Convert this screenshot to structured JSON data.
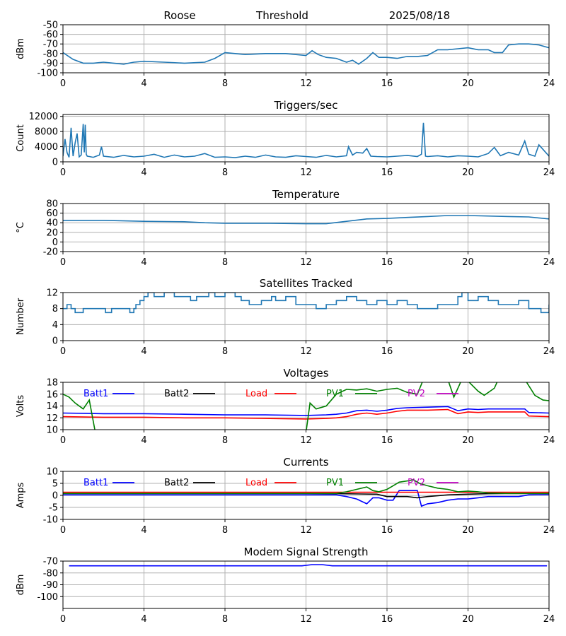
{
  "header": {
    "station": "Roose",
    "mode": "Threshold",
    "date": "2025/08/18"
  },
  "chart_data": [
    {
      "id": "signal",
      "type": "line",
      "title": "",
      "ylabel": "dBm",
      "xlim": [
        0,
        24
      ],
      "ylim": [
        -100,
        -50
      ],
      "xticks": [
        0,
        4,
        8,
        12,
        16,
        20,
        24
      ],
      "yticks": [
        -100,
        -90,
        -80,
        -70,
        -60,
        -50
      ],
      "grid": true,
      "series": [
        {
          "color": "#1f77b4",
          "x": [
            0,
            0.5,
            1,
            1.5,
            2,
            2.5,
            3,
            3.5,
            4,
            5,
            6,
            7,
            7.5,
            8,
            8.5,
            9,
            10,
            11,
            11.5,
            12,
            12.3,
            12.6,
            13,
            13.5,
            14,
            14.3,
            14.6,
            15,
            15.3,
            15.6,
            16,
            16.5,
            17,
            17.5,
            18,
            18.5,
            19,
            19.5,
            20,
            20.5,
            21,
            21.3,
            21.7,
            22,
            22.5,
            23,
            23.5,
            24
          ],
          "y": [
            -79,
            -86,
            -90,
            -90,
            -89,
            -90,
            -91,
            -89,
            -88,
            -89,
            -90,
            -89,
            -85,
            -79,
            -80,
            -81,
            -80,
            -80,
            -81,
            -82,
            -77,
            -81,
            -84,
            -85,
            -89,
            -87,
            -91,
            -85,
            -79,
            -84,
            -84,
            -85,
            -83,
            -83,
            -82,
            -76,
            -76,
            -75,
            -74,
            -76,
            -76,
            -79,
            -79,
            -71,
            -70,
            -70,
            -71,
            -74
          ]
        }
      ]
    },
    {
      "id": "triggers",
      "type": "line",
      "title": "Triggers/sec",
      "ylabel": "Count",
      "xlim": [
        0,
        24
      ],
      "ylim": [
        0,
        12500
      ],
      "xticks": [
        0,
        4,
        8,
        12,
        16,
        20,
        24
      ],
      "yticks": [
        0,
        4000,
        8000,
        12000
      ],
      "ytick_labels": [
        "0",
        "4000",
        "8000",
        "12000"
      ],
      "grid": true,
      "series": [
        {
          "color": "#1f77b4",
          "x": [
            0,
            0.1,
            0.2,
            0.3,
            0.4,
            0.5,
            0.6,
            0.7,
            0.8,
            0.9,
            1.0,
            1.05,
            1.1,
            1.15,
            1.2,
            1.3,
            1.5,
            1.8,
            1.9,
            2.0,
            2.5,
            3.0,
            3.5,
            4.0,
            4.5,
            5.0,
            5.5,
            6.0,
            6.5,
            7.0,
            7.5,
            8.0,
            8.5,
            9.0,
            9.5,
            10.0,
            10.5,
            11.0,
            11.5,
            12.0,
            12.5,
            13.0,
            13.5,
            14.0,
            14.1,
            14.3,
            14.5,
            14.8,
            15.0,
            15.2,
            15.5,
            16.0,
            16.5,
            17.0,
            17.5,
            17.7,
            17.8,
            17.9,
            18.0,
            18.5,
            19.0,
            19.5,
            20.0,
            20.5,
            21.0,
            21.3,
            21.6,
            22.0,
            22.5,
            22.8,
            23.0,
            23.3,
            23.5,
            24.0
          ],
          "y": [
            1500,
            6000,
            2500,
            1200,
            9000,
            1500,
            5000,
            7500,
            1300,
            1800,
            10000,
            2500,
            9800,
            2000,
            1500,
            1400,
            1200,
            1800,
            4000,
            1500,
            1200,
            1700,
            1300,
            1500,
            2000,
            1200,
            1800,
            1300,
            1500,
            2200,
            1200,
            1300,
            1100,
            1500,
            1200,
            1800,
            1300,
            1200,
            1600,
            1400,
            1200,
            1700,
            1300,
            1600,
            4000,
            1800,
            2500,
            2300,
            3500,
            1500,
            1400,
            1300,
            1500,
            1700,
            1400,
            2000,
            10300,
            1500,
            1400,
            1600,
            1300,
            1600,
            1500,
            1300,
            2200,
            3800,
            1600,
            2500,
            1800,
            5500,
            2000,
            1500,
            4500,
            1500
          ]
        }
      ]
    },
    {
      "id": "temperature",
      "type": "line",
      "title": "Temperature",
      "ylabel": "°C",
      "xlim": [
        0,
        24
      ],
      "ylim": [
        -20,
        80
      ],
      "xticks": [
        0,
        4,
        8,
        12,
        16,
        20,
        24
      ],
      "yticks": [
        -20,
        0,
        20,
        40,
        60,
        80
      ],
      "grid": true,
      "series": [
        {
          "color": "#1f77b4",
          "x": [
            0,
            2,
            4,
            6,
            7,
            8,
            10,
            12,
            13,
            14,
            15,
            16,
            17,
            18,
            19,
            20,
            21,
            22,
            23,
            24
          ],
          "y": [
            45,
            45,
            43,
            42,
            40,
            39,
            39,
            38,
            38,
            43,
            48,
            49,
            51,
            53,
            55,
            55,
            54,
            53,
            52,
            48
          ]
        }
      ]
    },
    {
      "id": "satellites",
      "type": "line",
      "title": "Satellites Tracked",
      "ylabel": "Number",
      "xlim": [
        0,
        24
      ],
      "ylim": [
        0,
        12
      ],
      "xticks": [
        0,
        4,
        8,
        12,
        16,
        20,
        24
      ],
      "yticks": [
        0,
        4,
        8,
        12
      ],
      "grid": true,
      "step": true,
      "series": [
        {
          "color": "#1f77b4",
          "x": [
            0,
            0.2,
            0.4,
            0.6,
            1.0,
            2.0,
            2.1,
            2.4,
            2.6,
            3.3,
            3.5,
            3.6,
            3.8,
            4.0,
            4.2,
            4.5,
            5.0,
            5.5,
            6.0,
            6.3,
            6.6,
            7.2,
            7.5,
            8.0,
            8.5,
            8.8,
            9.2,
            9.8,
            10.3,
            10.5,
            11.0,
            11.5,
            12.0,
            12.5,
            13.0,
            13.5,
            14.0,
            14.5,
            15.0,
            15.5,
            16.0,
            16.5,
            17.0,
            17.5,
            18.0,
            18.5,
            19.0,
            19.5,
            19.7,
            20.0,
            20.5,
            21.0,
            21.5,
            22.0,
            22.5,
            23.0,
            23.3,
            23.6,
            24.0
          ],
          "y": [
            8,
            9,
            8,
            7,
            8,
            8,
            7,
            8,
            8,
            7,
            8,
            9,
            10,
            11,
            12,
            11,
            12,
            11,
            11,
            10,
            11,
            12,
            11,
            12,
            11,
            10,
            9,
            10,
            11,
            10,
            11,
            9,
            9,
            8,
            9,
            10,
            11,
            10,
            9,
            10,
            9,
            10,
            9,
            8,
            8,
            9,
            9,
            11,
            12,
            10,
            11,
            10,
            9,
            9,
            10,
            8,
            8,
            7,
            9
          ]
        }
      ]
    },
    {
      "id": "voltages",
      "type": "line",
      "title": "Voltages",
      "ylabel": "Volts",
      "xlim": [
        0,
        24
      ],
      "ylim": [
        10,
        18
      ],
      "xticks": [
        0,
        4,
        8,
        12,
        16,
        20,
        24
      ],
      "yticks": [
        10,
        12,
        14,
        16,
        18
      ],
      "grid": true,
      "legend": [
        "Batt1",
        "Batt2",
        "Load",
        "PV1",
        "PV2"
      ],
      "series": [
        {
          "name": "Batt1",
          "color": "#0000ff",
          "x": [
            0,
            2,
            4,
            6,
            8,
            10,
            12,
            13,
            13.5,
            14,
            14.5,
            15,
            15.5,
            16,
            16.5,
            17,
            18,
            19,
            19.5,
            20,
            20.5,
            21,
            22,
            22.8,
            23,
            24
          ],
          "y": [
            12.8,
            12.7,
            12.7,
            12.6,
            12.5,
            12.5,
            12.4,
            12.5,
            12.6,
            12.8,
            13.2,
            13.3,
            13.1,
            13.3,
            13.6,
            13.7,
            13.8,
            13.9,
            13.2,
            13.5,
            13.4,
            13.5,
            13.5,
            13.5,
            12.9,
            12.8
          ]
        },
        {
          "name": "Batt2",
          "color": "#000000",
          "x": [],
          "y": []
        },
        {
          "name": "Load",
          "color": "#ff0000",
          "x": [
            0,
            2,
            4,
            6,
            8,
            10,
            12,
            13,
            13.5,
            14,
            14.5,
            15,
            15.5,
            16,
            16.5,
            17,
            18,
            19,
            19.5,
            20,
            20.5,
            21,
            22,
            22.8,
            23,
            24
          ],
          "y": [
            12.2,
            12.1,
            12.1,
            12.0,
            12.0,
            11.9,
            11.8,
            11.9,
            12.0,
            12.2,
            12.6,
            12.8,
            12.6,
            12.8,
            13.1,
            13.3,
            13.3,
            13.4,
            12.7,
            13.0,
            12.9,
            13.0,
            13.0,
            13.0,
            12.3,
            12.2
          ]
        },
        {
          "name": "PV1",
          "color": "#008000",
          "segments": [
            {
              "x": [
                0,
                0.3,
                0.6,
                1.0,
                1.3,
                1.6
              ],
              "y": [
                16.0,
                15.5,
                14.5,
                13.5,
                15.0,
                9.5
              ]
            },
            {
              "x": [
                12.0,
                12.2,
                12.5,
                13.0,
                13.5,
                14.0,
                14.5,
                15.0,
                15.5,
                16.0,
                16.5,
                17.0,
                17.5,
                17.8
              ],
              "y": [
                9.5,
                14.5,
                13.5,
                14.0,
                16.0,
                16.8,
                16.7,
                16.9,
                16.5,
                16.8,
                17.0,
                16.3,
                16.0,
                18.5
              ]
            },
            {
              "x": [
                19.0,
                19.3,
                19.7,
                20.0,
                20.5,
                20.8,
                21.3,
                21.5
              ],
              "y": [
                18.5,
                15.5,
                18.5,
                18.2,
                16.5,
                15.8,
                17.0,
                18.5
              ]
            },
            {
              "x": [
                22.8,
                23.3,
                23.7,
                24.0
              ],
              "y": [
                18.5,
                15.8,
                15.0,
                14.9
              ]
            }
          ]
        },
        {
          "name": "PV2",
          "color": "#bf00bf",
          "x": [],
          "y": []
        }
      ]
    },
    {
      "id": "currents",
      "type": "line",
      "title": "Currents",
      "ylabel": "Amps",
      "xlim": [
        0,
        24
      ],
      "ylim": [
        -10,
        10
      ],
      "xticks": [
        0,
        4,
        8,
        12,
        16,
        20,
        24
      ],
      "yticks": [
        -10,
        -5,
        0,
        5,
        10
      ],
      "grid": true,
      "legend": [
        "Batt1",
        "Batt2",
        "Load",
        "PV1",
        "PV2"
      ],
      "series": [
        {
          "name": "Batt1",
          "color": "#0000ff",
          "x": [
            0,
            2,
            4,
            6,
            8,
            10,
            12,
            13.5,
            14,
            14.5,
            15,
            15.3,
            15.6,
            16,
            16.3,
            16.6,
            17.5,
            17.7,
            18,
            18.5,
            19,
            19.5,
            20,
            20.5,
            21,
            21.5,
            22,
            22.5,
            23,
            24
          ],
          "y": [
            0.2,
            0.2,
            0.2,
            0.2,
            0.2,
            0.2,
            0.2,
            0.2,
            -0.5,
            -1.5,
            -3.5,
            -1.0,
            -1.0,
            -2.0,
            -2.0,
            2.0,
            2.0,
            -4.5,
            -3.5,
            -3.0,
            -2.0,
            -1.5,
            -1.5,
            -1.0,
            -0.5,
            -0.5,
            -0.5,
            -0.5,
            0.2,
            0.3
          ]
        },
        {
          "name": "Batt2",
          "color": "#000000",
          "x": [
            0,
            4,
            8,
            12,
            13.5,
            15.5,
            16,
            17,
            17.5,
            18,
            19,
            20,
            21,
            22,
            23,
            24
          ],
          "y": [
            0.8,
            0.8,
            0.8,
            0.8,
            0.7,
            0.5,
            -0.5,
            -0.5,
            -1.0,
            -0.5,
            0.2,
            0.5,
            0.7,
            0.8,
            0.8,
            0.8
          ]
        },
        {
          "name": "Load",
          "color": "#ff0000",
          "x": [
            0,
            4,
            8,
            12,
            16,
            20,
            24
          ],
          "y": [
            1.3,
            1.3,
            1.3,
            1.3,
            1.3,
            1.3,
            1.3
          ]
        },
        {
          "name": "PV1",
          "color": "#008000",
          "x": [
            0,
            4,
            8,
            12,
            13.5,
            14,
            14.5,
            15,
            15.3,
            15.6,
            16,
            16.3,
            16.6,
            17,
            17.3,
            17.6,
            18,
            18.5,
            19,
            19.5,
            20,
            20.5,
            21,
            22,
            23,
            24
          ],
          "y": [
            0.8,
            0.8,
            0.8,
            0.8,
            0.8,
            1.5,
            2.5,
            3.5,
            2.0,
            1.5,
            2.5,
            4.0,
            5.5,
            6.0,
            6.5,
            5.0,
            4.0,
            3.0,
            2.5,
            1.5,
            1.8,
            1.5,
            1.0,
            0.8,
            0.8,
            0.8
          ]
        },
        {
          "name": "PV2",
          "color": "#bf00bf",
          "x": [],
          "y": []
        }
      ]
    },
    {
      "id": "modem",
      "type": "line",
      "title": "Modem Signal Strength",
      "ylabel": "dBm",
      "xlim": [
        0,
        24
      ],
      "ylim": [
        -110,
        -70
      ],
      "xticks": [
        0,
        4,
        8,
        12,
        16,
        20,
        24
      ],
      "yticks": [
        -100,
        -90,
        -80,
        -70
      ],
      "grid": true,
      "series": [
        {
          "color": "#0000ff",
          "x": [
            0.3,
            4,
            8,
            11.8,
            12.3,
            12.8,
            13.3,
            14,
            16,
            20,
            23.9
          ],
          "y": [
            -74,
            -74,
            -74,
            -74,
            -73,
            -73,
            -74,
            -74,
            -74,
            -74,
            -74
          ]
        }
      ]
    }
  ]
}
